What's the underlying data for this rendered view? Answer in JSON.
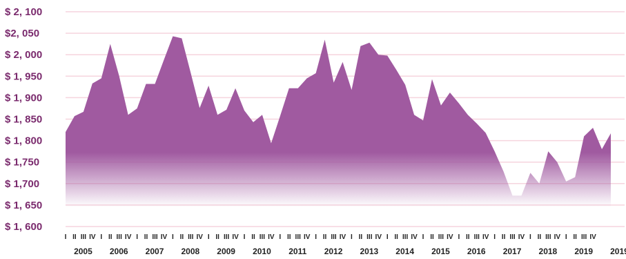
{
  "chart_data": {
    "type": "area",
    "title": "",
    "xlabel": "",
    "ylabel": "",
    "ylim": [
      1600,
      2100
    ],
    "y_ticks": [
      "$ 1, 600",
      "$ 1, 650",
      "$ 1,700",
      "$ 1,750",
      "$ 1, 800",
      "$ 1, 850",
      "$ 1, 900",
      "$ 1, 950",
      "$ 2, 000",
      "$2, 050",
      "$ 2, 100"
    ],
    "y_tick_values": [
      1600,
      1650,
      1700,
      1750,
      1800,
      1850,
      1900,
      1950,
      2000,
      2050,
      2100
    ],
    "quarter_labels": [
      "I",
      "II",
      "III",
      "IV"
    ],
    "years": [
      "2005",
      "2006",
      "2007",
      "2008",
      "2009",
      "2010",
      "2011",
      "2012",
      "2013",
      "2014",
      "2015",
      "2016",
      "2017",
      "2018",
      "2019",
      "2019"
    ],
    "grid": true,
    "fill_color": "#a05aa0",
    "grid_color": "#f6d4de",
    "series": [
      {
        "values": [
          1820,
          1857,
          1867,
          1933,
          1945,
          2025,
          1950,
          1860,
          1875,
          1932,
          1932,
          1988,
          2043,
          2038,
          1958,
          1876,
          1928,
          1860,
          1872,
          1922,
          1870,
          1843,
          1860,
          1794,
          1857,
          1922,
          1922,
          1945,
          1957,
          2035,
          1935,
          1983,
          1918,
          2020,
          2028,
          2000,
          1998,
          1965,
          1930,
          1860,
          1847,
          1943,
          1882,
          1912,
          1887,
          1860,
          1840,
          1818,
          1775,
          1728,
          1672,
          1672,
          1725,
          1700,
          1775,
          1750,
          1705,
          1715,
          1810,
          1830,
          1780,
          1817
        ]
      }
    ]
  }
}
